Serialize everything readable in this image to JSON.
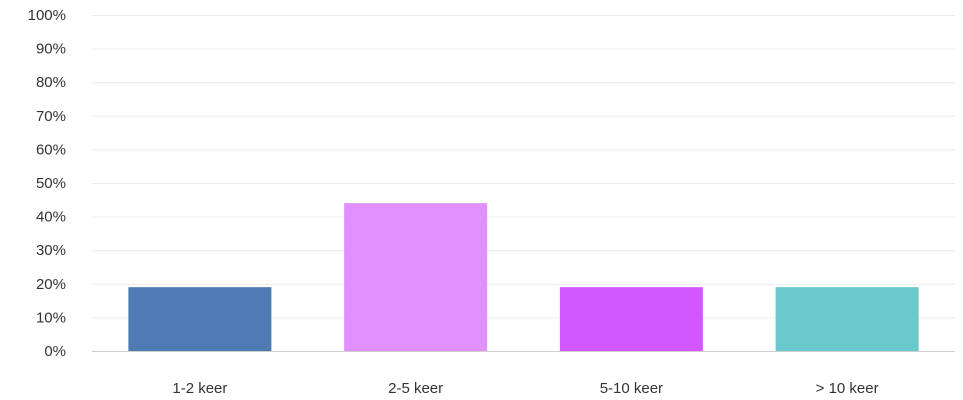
{
  "chart_data": {
    "type": "bar",
    "categories": [
      "1-2 keer",
      "2-5 keer",
      "5-10 keer",
      "> 10 keer"
    ],
    "values": [
      19,
      44,
      19,
      19
    ],
    "colors": [
      "#4f7bb5",
      "#e190ff",
      "#d257ff",
      "#6bc8cb"
    ],
    "ylim": [
      0,
      100
    ],
    "y_ticks": [
      "0%",
      "10%",
      "20%",
      "30%",
      "40%",
      "50%",
      "60%",
      "70%",
      "80%",
      "90%",
      "100%"
    ],
    "y_tick_values": [
      0,
      10,
      20,
      30,
      40,
      50,
      60,
      70,
      80,
      90,
      100
    ],
    "grid": true,
    "title": "",
    "xlabel": "",
    "ylabel": ""
  }
}
